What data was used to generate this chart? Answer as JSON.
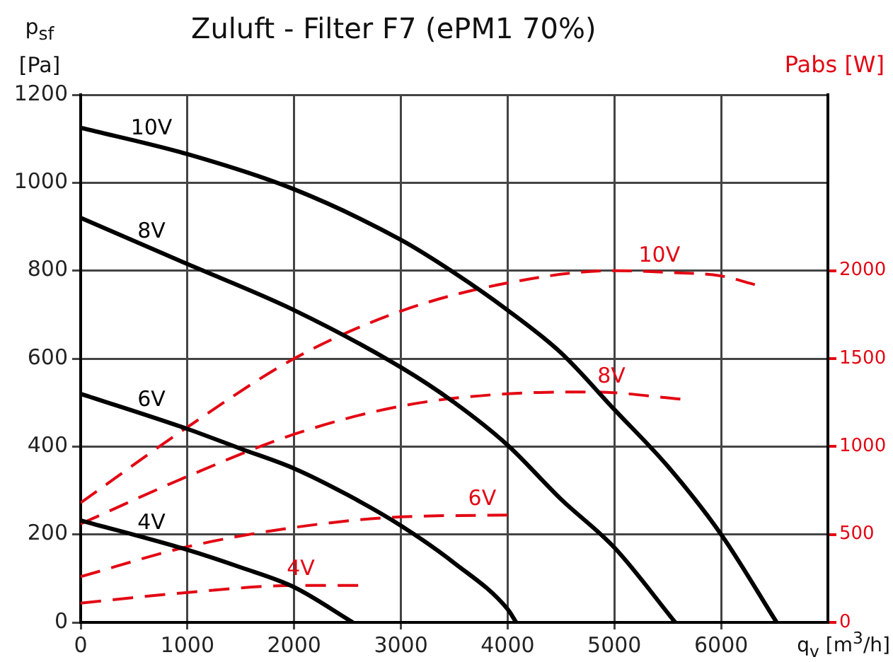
{
  "chart_data": {
    "type": "line",
    "title": "Zuluft - Filter F7 (ePM1 70%)",
    "xlabel": "q$_{v}$ [m$^{3}$/h]",
    "ylabel": "p$_{sf}$ [Pa]",
    "y2label": "Pabs [W]",
    "xlim": [
      0,
      7000
    ],
    "xticks": [
      0,
      1000,
      2000,
      3000,
      4000,
      5000,
      6000
    ],
    "ylim": [
      0,
      1200
    ],
    "yticks": [
      0,
      200,
      400,
      600,
      800,
      1000,
      1200
    ],
    "y2lim": [
      0,
      3000
    ],
    "y2ticks": [
      0,
      500,
      1000,
      1500,
      2000
    ],
    "grid": true,
    "legend": false,
    "marker": "none",
    "series": [
      {
        "name": "10V",
        "color": "#000000",
        "line_style": "solid",
        "x": [
          0,
          1000,
          2000,
          3000,
          3500,
          4000,
          4500,
          5000,
          5500,
          6000,
          6520
        ],
        "values": [
          1125,
          1065,
          985,
          870,
          795,
          710,
          613,
          484,
          355,
          200,
          0
        ]
      },
      {
        "name": "8V",
        "color": "#000000",
        "line_style": "solid",
        "x": [
          0,
          1000,
          2000,
          3000,
          3500,
          4000,
          4500,
          5000,
          5570
        ],
        "values": [
          920,
          815,
          710,
          580,
          500,
          403,
          280,
          170,
          0
        ]
      },
      {
        "name": "6V",
        "color": "#000000",
        "line_style": "solid",
        "x": [
          0,
          1000,
          1500,
          2000,
          2500,
          3000,
          3500,
          4000,
          4080
        ],
        "values": [
          520,
          440,
          395,
          350,
          290,
          220,
          135,
          30,
          0
        ]
      },
      {
        "name": "4V",
        "color": "#000000",
        "line_style": "solid",
        "x": [
          0,
          1000,
          1500,
          2000,
          2550
        ],
        "values": [
          232,
          165,
          125,
          80,
          0
        ]
      },
      {
        "name": "10V",
        "color": "#e30613",
        "line_style": "dashed",
        "axis": "y2",
        "x": [
          0,
          1000,
          2000,
          3000,
          4000,
          5000,
          5500,
          6000,
          6320
        ],
        "values": [
          680,
          1110,
          1500,
          1770,
          1930,
          2000,
          1990,
          1970,
          1920
        ]
      },
      {
        "name": "8V",
        "color": "#e30613",
        "line_style": "dashed",
        "axis": "y2",
        "x": [
          0,
          1000,
          2000,
          3000,
          4000,
          4800,
          5620
        ],
        "values": [
          560,
          830,
          1070,
          1230,
          1300,
          1310,
          1270
        ]
      },
      {
        "name": "6V",
        "color": "#e30613",
        "line_style": "dashed",
        "axis": "y2",
        "x": [
          0,
          1000,
          2000,
          3000,
          4000
        ],
        "values": [
          260,
          430,
          540,
          600,
          610
        ]
      },
      {
        "name": "4V",
        "color": "#e30613",
        "line_style": "dashed",
        "axis": "y2",
        "x": [
          0,
          1000,
          2000,
          2600
        ],
        "values": [
          110,
          170,
          210,
          210
        ]
      }
    ]
  }
}
